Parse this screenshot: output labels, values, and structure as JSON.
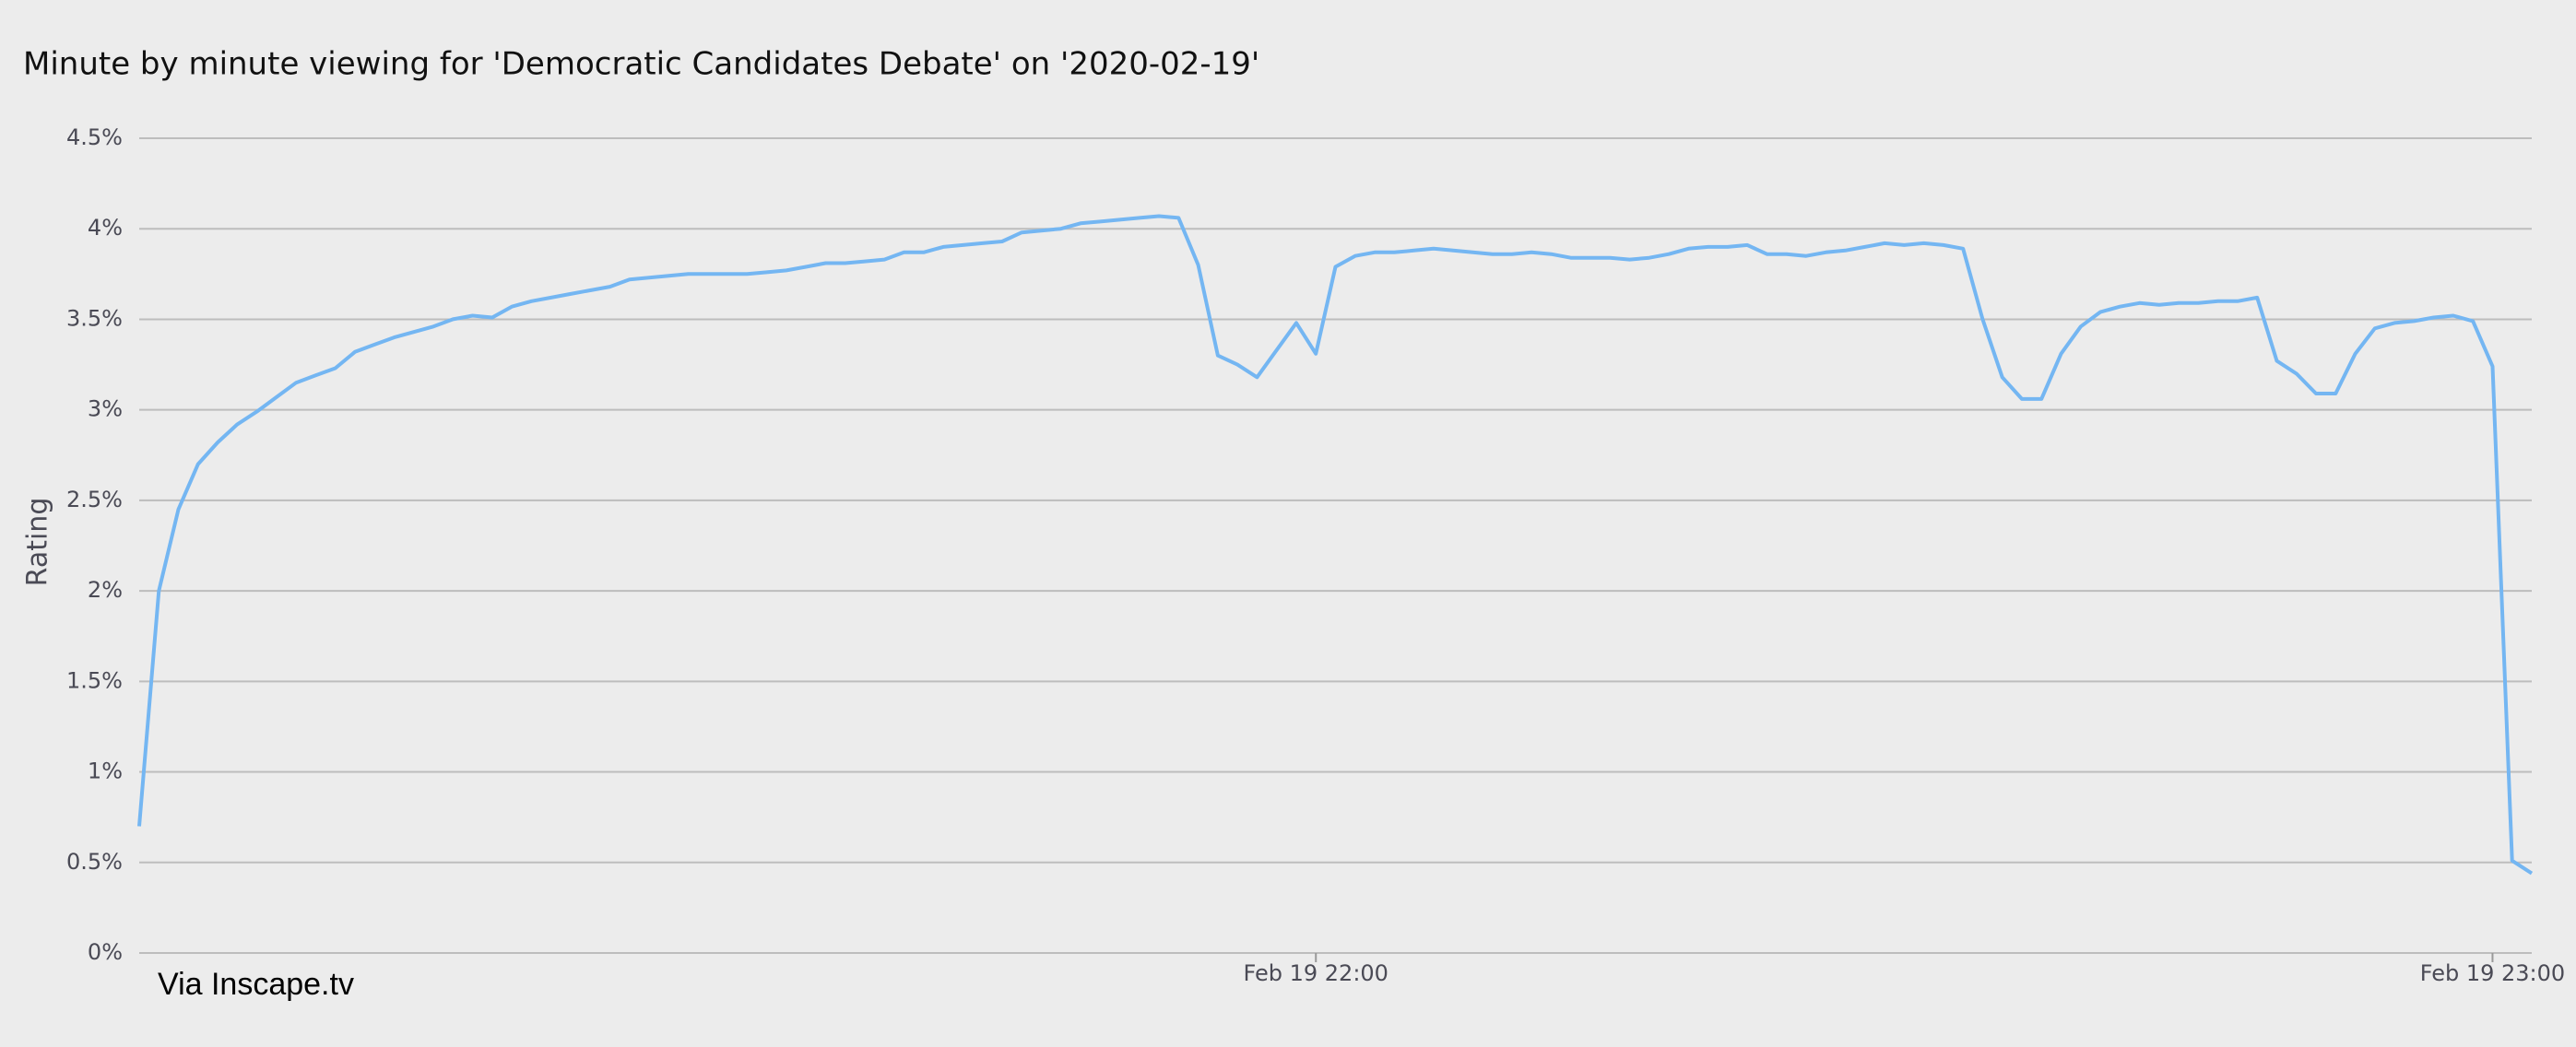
{
  "chart_data": {
    "type": "line",
    "title": "Minute by minute viewing for 'Democratic Candidates Debate' on '2020-02-19'",
    "y_label": "Rating",
    "source": "Via Inscape.tv",
    "color": "#74b6f2",
    "grid": true,
    "xlim": [
      "Feb 19 21:00",
      "Feb 19 23:02"
    ],
    "xticks": [
      "Feb 19 22:00",
      "Feb 19 23:00"
    ],
    "ylim": [
      0,
      4.5
    ],
    "yticks": [
      {
        "value": 0,
        "label": "0%"
      },
      {
        "value": 0.5,
        "label": "0.5%"
      },
      {
        "value": 1,
        "label": "1%"
      },
      {
        "value": 1.5,
        "label": "1.5%"
      },
      {
        "value": 2,
        "label": "2%"
      },
      {
        "value": 2.5,
        "label": "2.5%"
      },
      {
        "value": 3,
        "label": "3%"
      },
      {
        "value": 3.5,
        "label": "3.5%"
      },
      {
        "value": 4,
        "label": "4%"
      },
      {
        "value": 4.5,
        "label": "4.5%"
      }
    ],
    "x": [
      "Feb 19 21:00",
      "Feb 19 21:01",
      "Feb 19 21:02",
      "Feb 19 21:03",
      "Feb 19 21:04",
      "Feb 19 21:05",
      "Feb 19 21:06",
      "Feb 19 21:07",
      "Feb 19 21:08",
      "Feb 19 21:09",
      "Feb 19 21:10",
      "Feb 19 21:11",
      "Feb 19 21:12",
      "Feb 19 21:13",
      "Feb 19 21:14",
      "Feb 19 21:15",
      "Feb 19 21:16",
      "Feb 19 21:17",
      "Feb 19 21:18",
      "Feb 19 21:19",
      "Feb 19 21:20",
      "Feb 19 21:21",
      "Feb 19 21:22",
      "Feb 19 21:23",
      "Feb 19 21:24",
      "Feb 19 21:25",
      "Feb 19 21:26",
      "Feb 19 21:27",
      "Feb 19 21:28",
      "Feb 19 21:29",
      "Feb 19 21:30",
      "Feb 19 21:31",
      "Feb 19 21:32",
      "Feb 19 21:33",
      "Feb 19 21:34",
      "Feb 19 21:35",
      "Feb 19 21:36",
      "Feb 19 21:37",
      "Feb 19 21:38",
      "Feb 19 21:39",
      "Feb 19 21:40",
      "Feb 19 21:41",
      "Feb 19 21:42",
      "Feb 19 21:43",
      "Feb 19 21:44",
      "Feb 19 21:45",
      "Feb 19 21:46",
      "Feb 19 21:47",
      "Feb 19 21:48",
      "Feb 19 21:49",
      "Feb 19 21:50",
      "Feb 19 21:51",
      "Feb 19 21:52",
      "Feb 19 21:53",
      "Feb 19 21:54",
      "Feb 19 21:55",
      "Feb 19 21:56",
      "Feb 19 21:57",
      "Feb 19 21:58",
      "Feb 19 21:59",
      "Feb 19 22:00",
      "Feb 19 22:01",
      "Feb 19 22:02",
      "Feb 19 22:03",
      "Feb 19 22:04",
      "Feb 19 22:05",
      "Feb 19 22:06",
      "Feb 19 22:07",
      "Feb 19 22:08",
      "Feb 19 22:09",
      "Feb 19 22:10",
      "Feb 19 22:11",
      "Feb 19 22:12",
      "Feb 19 22:13",
      "Feb 19 22:14",
      "Feb 19 22:15",
      "Feb 19 22:16",
      "Feb 19 22:17",
      "Feb 19 22:18",
      "Feb 19 22:19",
      "Feb 19 22:20",
      "Feb 19 22:21",
      "Feb 19 22:22",
      "Feb 19 22:23",
      "Feb 19 22:24",
      "Feb 19 22:25",
      "Feb 19 22:26",
      "Feb 19 22:27",
      "Feb 19 22:28",
      "Feb 19 22:29",
      "Feb 19 22:30",
      "Feb 19 22:31",
      "Feb 19 22:32",
      "Feb 19 22:33",
      "Feb 19 22:34",
      "Feb 19 22:35",
      "Feb 19 22:36",
      "Feb 19 22:37",
      "Feb 19 22:38",
      "Feb 19 22:39",
      "Feb 19 22:40",
      "Feb 19 22:41",
      "Feb 19 22:42",
      "Feb 19 22:43",
      "Feb 19 22:44",
      "Feb 19 22:45",
      "Feb 19 22:46",
      "Feb 19 22:47",
      "Feb 19 22:48",
      "Feb 19 22:49",
      "Feb 19 22:50",
      "Feb 19 22:51",
      "Feb 19 22:52",
      "Feb 19 22:53",
      "Feb 19 22:54",
      "Feb 19 22:55",
      "Feb 19 22:56",
      "Feb 19 22:57",
      "Feb 19 22:58",
      "Feb 19 22:59",
      "Feb 19 23:00",
      "Feb 19 23:01",
      "Feb 19 23:02"
    ],
    "values": [
      0.7,
      2.0,
      2.45,
      2.7,
      2.82,
      2.92,
      2.99,
      3.07,
      3.15,
      3.19,
      3.23,
      3.32,
      3.36,
      3.4,
      3.43,
      3.46,
      3.5,
      3.52,
      3.51,
      3.57,
      3.6,
      3.62,
      3.64,
      3.66,
      3.68,
      3.72,
      3.73,
      3.74,
      3.75,
      3.75,
      3.75,
      3.75,
      3.76,
      3.77,
      3.79,
      3.81,
      3.81,
      3.82,
      3.83,
      3.87,
      3.87,
      3.9,
      3.91,
      3.92,
      3.93,
      3.98,
      3.99,
      4.0,
      4.03,
      4.04,
      4.05,
      4.06,
      4.07,
      4.06,
      3.8,
      3.3,
      3.25,
      3.18,
      3.33,
      3.48,
      3.31,
      3.79,
      3.85,
      3.87,
      3.87,
      3.88,
      3.89,
      3.88,
      3.87,
      3.86,
      3.86,
      3.87,
      3.86,
      3.84,
      3.84,
      3.84,
      3.83,
      3.84,
      3.86,
      3.89,
      3.9,
      3.9,
      3.91,
      3.86,
      3.86,
      3.85,
      3.87,
      3.88,
      3.9,
      3.92,
      3.91,
      3.92,
      3.91,
      3.89,
      3.5,
      3.18,
      3.06,
      3.06,
      3.31,
      3.46,
      3.54,
      3.57,
      3.59,
      3.58,
      3.59,
      3.59,
      3.6,
      3.6,
      3.62,
      3.27,
      3.2,
      3.09,
      3.09,
      3.31,
      3.45,
      3.48,
      3.49,
      3.51,
      3.52,
      3.49,
      3.24,
      0.51,
      0.44
    ]
  }
}
